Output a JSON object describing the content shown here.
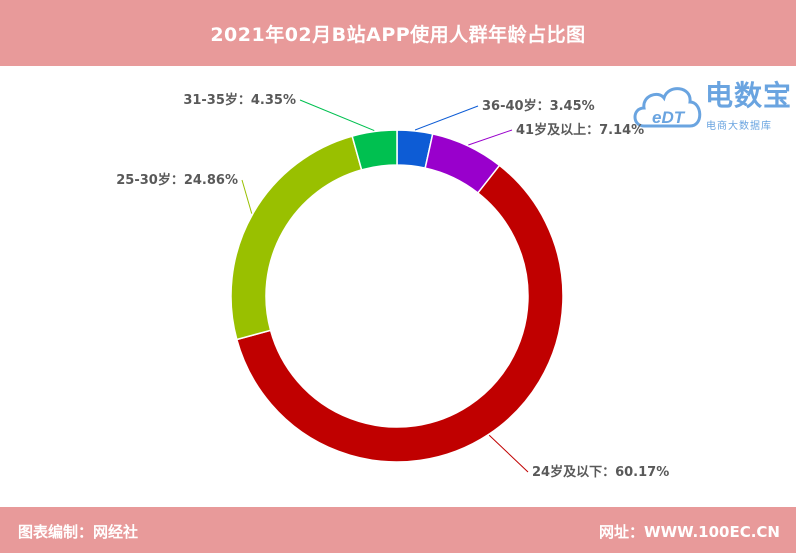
{
  "header": {
    "title": "2021年02月B站APP使用人群年龄占比图"
  },
  "footer": {
    "left_text": "图表编制：网经社",
    "right_text": "网址：WWW.100EC.CN"
  },
  "logo": {
    "name": "电数宝",
    "sub": "电商大数据库",
    "mark": "eDT",
    "icon": "cloud-logo-icon"
  },
  "colors": {
    "banner": "#e89a9a",
    "logo": "#6aa4e0"
  },
  "chart_data": {
    "type": "pie",
    "title": "2021年02月B站APP使用人群年龄占比图",
    "donut": true,
    "start": "top",
    "direction": "clockwise",
    "slices": [
      {
        "label": "36-40岁",
        "value": 3.45,
        "display": "36-40岁：3.45%",
        "color": "#0d5cd5"
      },
      {
        "label": "41岁及以上",
        "value": 7.14,
        "display": "41岁及以上：7.14%",
        "color": "#9900cc"
      },
      {
        "label": "24岁及以下",
        "value": 60.17,
        "display": "24岁及以下：60.17%",
        "color": "#c00000"
      },
      {
        "label": "25-30岁",
        "value": 24.86,
        "display": "25-30岁：24.86%",
        "color": "#99c000"
      },
      {
        "label": "31-35岁",
        "value": 4.35,
        "display": "31-35岁：4.35%",
        "color": "#00c050"
      }
    ]
  }
}
